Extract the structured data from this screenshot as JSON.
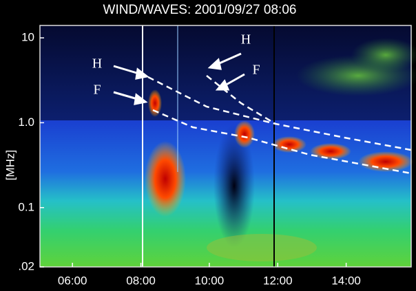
{
  "chart_data": {
    "type": "spectrogram",
    "title": "WIND/WAVES: 2001/09/27 08:06",
    "ylabel": "[MHz]",
    "yscale": "log",
    "ylim": [
      0.02,
      14
    ],
    "yticks": [
      10,
      {
        "value": 1,
        "label": "1.0"
      },
      0.1,
      {
        "value": 0.02,
        "label": ".02"
      }
    ],
    "xlim": [
      5.05,
      15.9
    ],
    "xticks": [
      {
        "value": 6,
        "label": "06:00"
      },
      {
        "value": 8,
        "label": "08:00"
      },
      {
        "value": 10,
        "label": "10:00"
      },
      {
        "value": 12,
        "label": "12:00"
      },
      {
        "value": 14,
        "label": "14:00"
      }
    ],
    "annotations": [
      "H",
      "F",
      "H",
      "F"
    ]
  }
}
